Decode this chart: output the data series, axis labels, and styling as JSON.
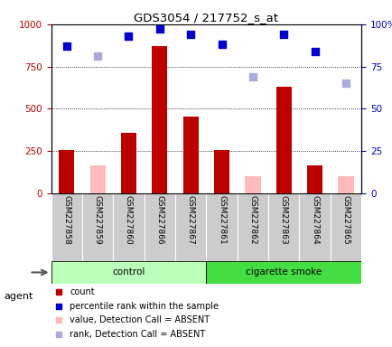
{
  "title": "GDS3054 / 217752_s_at",
  "samples": [
    "GSM227858",
    "GSM227859",
    "GSM227860",
    "GSM227866",
    "GSM227867",
    "GSM227861",
    "GSM227862",
    "GSM227863",
    "GSM227864",
    "GSM227865"
  ],
  "groups": [
    "control",
    "control",
    "control",
    "control",
    "control",
    "cigarette smoke",
    "cigarette smoke",
    "cigarette smoke",
    "cigarette smoke",
    "cigarette smoke"
  ],
  "count_values": [
    255,
    null,
    360,
    870,
    455,
    255,
    null,
    630,
    165,
    null
  ],
  "count_absent": [
    null,
    165,
    null,
    null,
    null,
    null,
    100,
    null,
    null,
    100
  ],
  "rank_present": [
    87,
    null,
    93,
    97,
    94,
    88,
    null,
    94,
    84,
    null
  ],
  "rank_absent": [
    null,
    81,
    null,
    null,
    null,
    null,
    69,
    null,
    null,
    65
  ],
  "ylim_left": [
    0,
    1000
  ],
  "ylim_right": [
    0,
    100
  ],
  "yticks_left": [
    0,
    250,
    500,
    750,
    1000
  ],
  "yticks_right": [
    0,
    25,
    50,
    75,
    100
  ],
  "ytick_labels_left": [
    "0",
    "250",
    "500",
    "750",
    "1000"
  ],
  "ytick_labels_right": [
    "0",
    "25",
    "50",
    "75",
    "100%"
  ],
  "bar_color_present": "#bb0000",
  "bar_color_absent": "#ffbbbb",
  "dot_color_present": "#0000cc",
  "dot_color_absent": "#aaaadd",
  "bg_color_xticklabels": "#cccccc",
  "group_control_color": "#bbffbb",
  "group_smoke_color": "#44dd44",
  "group_label_control": "control",
  "group_label_smoke": "cigarette smoke",
  "agent_label": "agent",
  "bar_width": 0.5,
  "dot_size": 35,
  "legend_items": [
    [
      "#bb0000",
      "count"
    ],
    [
      "#0000cc",
      "percentile rank within the sample"
    ],
    [
      "#ffbbbb",
      "value, Detection Call = ABSENT"
    ],
    [
      "#aaaadd",
      "rank, Detection Call = ABSENT"
    ]
  ]
}
